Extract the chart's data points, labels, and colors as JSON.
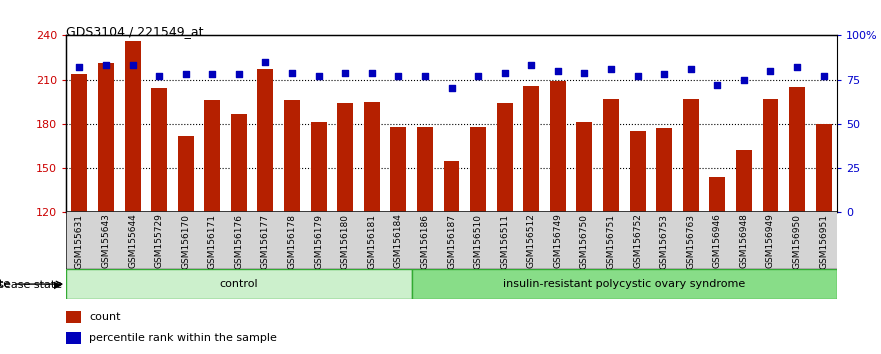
{
  "title": "GDS3104 / 221549_at",
  "samples": [
    "GSM155631",
    "GSM155643",
    "GSM155644",
    "GSM155729",
    "GSM156170",
    "GSM156171",
    "GSM156176",
    "GSM156177",
    "GSM156178",
    "GSM156179",
    "GSM156180",
    "GSM156181",
    "GSM156184",
    "GSM156186",
    "GSM156187",
    "GSM156510",
    "GSM156511",
    "GSM156512",
    "GSM156749",
    "GSM156750",
    "GSM156751",
    "GSM156752",
    "GSM156753",
    "GSM156763",
    "GSM156946",
    "GSM156948",
    "GSM156949",
    "GSM156950",
    "GSM156951"
  ],
  "counts": [
    214,
    221,
    236,
    204,
    172,
    196,
    187,
    217,
    196,
    181,
    194,
    195,
    178,
    178,
    155,
    178,
    194,
    206,
    209,
    181,
    197,
    175,
    177,
    197,
    144,
    162,
    197,
    205,
    180
  ],
  "percentiles": [
    82,
    83,
    83,
    77,
    78,
    78,
    78,
    85,
    79,
    77,
    79,
    79,
    77,
    77,
    70,
    77,
    79,
    83,
    80,
    79,
    81,
    77,
    78,
    81,
    72,
    75,
    80,
    82,
    77
  ],
  "control_count": 13,
  "disease_count": 16,
  "control_label": "control",
  "disease_label": "insulin-resistant polycystic ovary syndrome",
  "ylim_left": [
    120,
    240
  ],
  "ylim_right": [
    0,
    100
  ],
  "yticks_left": [
    120,
    150,
    180,
    210,
    240
  ],
  "yticks_right": [
    0,
    25,
    50,
    75,
    100
  ],
  "ytick_right_labels": [
    "0",
    "25",
    "50",
    "75",
    "100%"
  ],
  "bar_color": "#b52000",
  "dot_color": "#0000bb",
  "bar_width": 0.6,
  "bg_color": "#ffffff",
  "plot_bg_color": "#ffffff",
  "control_bg": "#ccf0cc",
  "disease_bg": "#88dd88",
  "xtick_bg": "#d4d4d4"
}
